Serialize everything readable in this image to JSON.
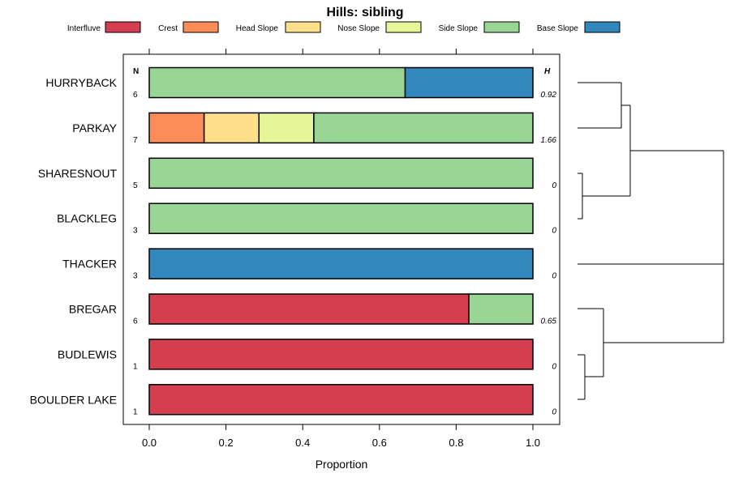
{
  "chart_data": {
    "type": "bar",
    "orientation": "horizontal",
    "stacked": true,
    "title": "Hills: sibling",
    "xlabel": "Proportion",
    "xlim": [
      0,
      1
    ],
    "x_ticks": [
      "0.0",
      "0.2",
      "0.4",
      "0.6",
      "0.8",
      "1.0"
    ],
    "n_header": "N",
    "h_header": "H",
    "legend": [
      {
        "name": "Interfluve",
        "color": "#D53E4F"
      },
      {
        "name": "Crest",
        "color": "#FC8D59"
      },
      {
        "name": "Head Slope",
        "color": "#FEE08B"
      },
      {
        "name": "Nose Slope",
        "color": "#E6F598"
      },
      {
        "name": "Side Slope",
        "color": "#99D594"
      },
      {
        "name": "Base Slope",
        "color": "#3288BD"
      }
    ],
    "categories": [
      "HURRYBACK",
      "PARKAY",
      "SHARESNOUT",
      "BLACKLEG",
      "THACKER",
      "BREGAR",
      "BUDLEWIS",
      "BOULDER LAKE"
    ],
    "n": [
      "6",
      "7",
      "5",
      "3",
      "3",
      "6",
      "1",
      "1"
    ],
    "h": [
      "0.92",
      "1.66",
      "0",
      "0",
      "0",
      "0.65",
      "0",
      "0"
    ],
    "series": [
      {
        "name": "Interfluve",
        "values": [
          0,
          0,
          0,
          0,
          0,
          0.833,
          1,
          1
        ]
      },
      {
        "name": "Crest",
        "values": [
          0,
          0.143,
          0,
          0,
          0,
          0,
          0,
          0
        ]
      },
      {
        "name": "Head Slope",
        "values": [
          0,
          0.143,
          0,
          0,
          0,
          0,
          0,
          0
        ]
      },
      {
        "name": "Nose Slope",
        "values": [
          0,
          0.143,
          0,
          0,
          0,
          0,
          0,
          0
        ]
      },
      {
        "name": "Side Slope",
        "values": [
          0.667,
          0.571,
          1,
          1,
          0,
          0.167,
          0,
          0
        ]
      },
      {
        "name": "Base Slope",
        "values": [
          0.333,
          0,
          0,
          0,
          1,
          0,
          0,
          0
        ]
      }
    ],
    "dendrogram": "clustering tree joining HURRYBACK+PARKAY, SHARESNOUT+BLACKLEG, BUDLEWIS+BOULDER LAKE (+BREGAR), THACKER",
    "grid": false,
    "legend_position": "top"
  }
}
